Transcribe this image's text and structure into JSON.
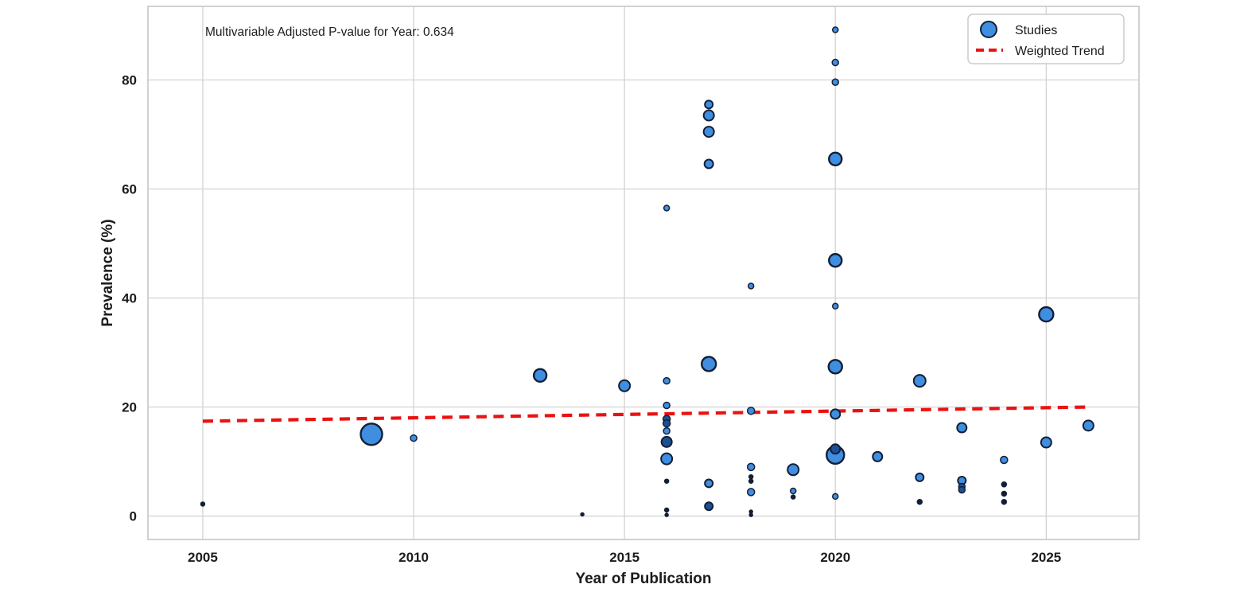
{
  "figure": {
    "background": "#ffffff",
    "annotation": "Multivariable Adjusted P-value for Year: 0.634",
    "xlabel": "Year of Publication",
    "ylabel": "Prevalence (%)",
    "legend": {
      "position": "upper right",
      "studies_label": "Studies",
      "trend_label": "Weighted Trend"
    }
  },
  "colors": {
    "point_fill": "#3f8ee0",
    "point_fill_dark": "#1d4f93",
    "point_edge": "#131f36",
    "trend": "#ea1212",
    "grid": "#d3d3d3",
    "spine": "#c6c6c6",
    "text": "#1c1c1c",
    "legend_border": "#cccccc"
  },
  "chart_data": {
    "type": "scatter",
    "title": "",
    "xlabel": "Year of Publication",
    "ylabel": "Prevalence (%)",
    "annotation": "Multivariable Adjusted P-value for Year: 0.634",
    "grid": true,
    "legend_position": "upper right",
    "x_ticks": [
      2005,
      2010,
      2015,
      2020,
      2025
    ],
    "y_ticks": [
      0,
      20,
      40,
      60,
      80
    ],
    "xlim": [
      2003.7,
      2027.2
    ],
    "ylim": [
      -4.3,
      93.5
    ],
    "series_label": "Studies",
    "points": [
      {
        "year": 2005,
        "prevalence": 2.2,
        "size": 2.5,
        "dark": true
      },
      {
        "year": 2009,
        "prevalence": 15.0,
        "size": 13.5
      },
      {
        "year": 2010,
        "prevalence": 14.3,
        "size": 4
      },
      {
        "year": 2013,
        "prevalence": 25.8,
        "size": 8
      },
      {
        "year": 2014,
        "prevalence": 0.3,
        "size": 2,
        "dark": true
      },
      {
        "year": 2015,
        "prevalence": 23.9,
        "size": 7
      },
      {
        "year": 2016,
        "prevalence": 56.5,
        "size": 3.5
      },
      {
        "year": 2016,
        "prevalence": 24.8,
        "size": 4
      },
      {
        "year": 2016,
        "prevalence": 20.3,
        "size": 4
      },
      {
        "year": 2016,
        "prevalence": 17.8,
        "size": 4.5,
        "dark": true
      },
      {
        "year": 2016,
        "prevalence": 17.0,
        "size": 4.5,
        "dark": true
      },
      {
        "year": 2016,
        "prevalence": 15.6,
        "size": 4
      },
      {
        "year": 2016,
        "prevalence": 13.6,
        "size": 6.5,
        "dark": true
      },
      {
        "year": 2016,
        "prevalence": 10.5,
        "size": 7
      },
      {
        "year": 2016,
        "prevalence": 6.4,
        "size": 2.5,
        "dark": true
      },
      {
        "year": 2016,
        "prevalence": 1.1,
        "size": 2.5,
        "dark": true
      },
      {
        "year": 2016,
        "prevalence": 0.2,
        "size": 2,
        "dark": true
      },
      {
        "year": 2017,
        "prevalence": 75.5,
        "size": 5
      },
      {
        "year": 2017,
        "prevalence": 73.5,
        "size": 6.5
      },
      {
        "year": 2017,
        "prevalence": 70.5,
        "size": 6.5
      },
      {
        "year": 2017,
        "prevalence": 64.6,
        "size": 5.5
      },
      {
        "year": 2017,
        "prevalence": 27.9,
        "size": 9
      },
      {
        "year": 2017,
        "prevalence": 6.0,
        "size": 5
      },
      {
        "year": 2017,
        "prevalence": 1.8,
        "size": 5,
        "dark": true
      },
      {
        "year": 2018,
        "prevalence": 42.2,
        "size": 3.5
      },
      {
        "year": 2018,
        "prevalence": 19.3,
        "size": 4.5
      },
      {
        "year": 2018,
        "prevalence": 9.0,
        "size": 4.5
      },
      {
        "year": 2018,
        "prevalence": 7.2,
        "size": 2.5,
        "dark": true
      },
      {
        "year": 2018,
        "prevalence": 6.4,
        "size": 2.5,
        "dark": true
      },
      {
        "year": 2018,
        "prevalence": 4.4,
        "size": 4.5
      },
      {
        "year": 2018,
        "prevalence": 0.8,
        "size": 2,
        "dark": true
      },
      {
        "year": 2018,
        "prevalence": 0.2,
        "size": 2,
        "dark": true
      },
      {
        "year": 2019,
        "prevalence": 8.5,
        "size": 7
      },
      {
        "year": 2019,
        "prevalence": 4.6,
        "size": 3.5
      },
      {
        "year": 2019,
        "prevalence": 3.5,
        "size": 2.5,
        "dark": true
      },
      {
        "year": 2020,
        "prevalence": 89.2,
        "size": 3.5
      },
      {
        "year": 2020,
        "prevalence": 83.2,
        "size": 4
      },
      {
        "year": 2020,
        "prevalence": 79.6,
        "size": 4
      },
      {
        "year": 2020,
        "prevalence": 65.5,
        "size": 8
      },
      {
        "year": 2020,
        "prevalence": 46.9,
        "size": 8
      },
      {
        "year": 2020,
        "prevalence": 38.5,
        "size": 3.5
      },
      {
        "year": 2020,
        "prevalence": 27.4,
        "size": 8.5
      },
      {
        "year": 2020,
        "prevalence": 18.7,
        "size": 6
      },
      {
        "year": 2020,
        "prevalence": 12.3,
        "size": 6,
        "dark": true
      },
      {
        "year": 2020,
        "prevalence": 11.2,
        "size": 11
      },
      {
        "year": 2020,
        "prevalence": 3.6,
        "size": 3.5
      },
      {
        "year": 2021,
        "prevalence": 10.9,
        "size": 6
      },
      {
        "year": 2022,
        "prevalence": 24.8,
        "size": 7.5
      },
      {
        "year": 2022,
        "prevalence": 7.1,
        "size": 5
      },
      {
        "year": 2022,
        "prevalence": 2.6,
        "size": 3,
        "dark": true
      },
      {
        "year": 2023,
        "prevalence": 16.2,
        "size": 6
      },
      {
        "year": 2023,
        "prevalence": 6.5,
        "size": 5
      },
      {
        "year": 2023,
        "prevalence": 5.4,
        "size": 4,
        "dark": true
      },
      {
        "year": 2023,
        "prevalence": 4.8,
        "size": 4,
        "dark": true
      },
      {
        "year": 2024,
        "prevalence": 10.3,
        "size": 4.5
      },
      {
        "year": 2024,
        "prevalence": 5.8,
        "size": 3,
        "dark": true
      },
      {
        "year": 2024,
        "prevalence": 4.1,
        "size": 3,
        "dark": true
      },
      {
        "year": 2024,
        "prevalence": 2.6,
        "size": 3,
        "dark": true
      },
      {
        "year": 2025,
        "prevalence": 37.0,
        "size": 9
      },
      {
        "year": 2025,
        "prevalence": 13.5,
        "size": 6.5
      },
      {
        "year": 2026,
        "prevalence": 16.6,
        "size": 6.5
      }
    ],
    "trend": {
      "label": "Weighted Trend",
      "style": "dashed",
      "x": [
        2005,
        2026
      ],
      "y": [
        17.4,
        20.0
      ]
    }
  }
}
